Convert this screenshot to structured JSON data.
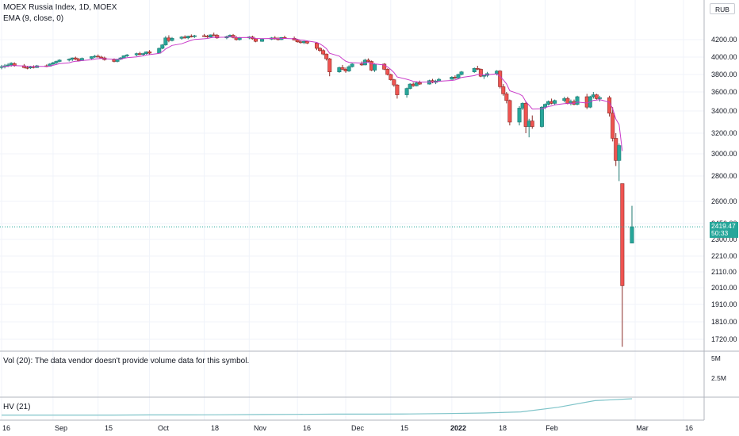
{
  "header": {
    "title": "MOEX Russia Index, 1D, MOEX",
    "indicator": "EMA (9, close, 0)",
    "currency": "RUB"
  },
  "volume_pane": {
    "label": "Vol (20): The data vendor doesn't provide volume data for this symbol.",
    "ticks": [
      "5M",
      "2.5M"
    ]
  },
  "hv_pane": {
    "label": "HV (21)"
  },
  "last_price": {
    "value": "2419.47",
    "countdown": "50:33"
  },
  "colors": {
    "up": "#26a69a",
    "down": "#ef5350",
    "ema": "#c93bc9",
    "hv": "#7fc4c9",
    "grid": "#f0f3fa",
    "border": "#b2b5be"
  },
  "chart_data": {
    "type": "candlestick",
    "title": "MOEX Russia Index, 1D, MOEX",
    "y_ticks": [
      4200,
      4000,
      3800,
      3600,
      3400,
      3200,
      3000,
      2800,
      2600,
      2450,
      2300,
      2210,
      2110,
      2010,
      1910,
      1810,
      1720
    ],
    "y_tick_labels": [
      "4200.00",
      "4000.00",
      "3800.00",
      "3600.00",
      "3400.00",
      "3200.00",
      "3000.00",
      "2800.00",
      "2600.00",
      "2450.00",
      "2300.00",
      "2210.00",
      "2110.00",
      "2010.00",
      "1910.00",
      "1810.00",
      "1720.00"
    ],
    "x_tick_labels": [
      "16",
      "Sep",
      "15",
      "Oct",
      "18",
      "Nov",
      "16",
      "Dec",
      "15",
      "2022",
      "18",
      "Feb",
      "Mar",
      "16"
    ],
    "x_tick_dates": [
      "2021-08-16",
      "2021-09-01",
      "2021-09-15",
      "2021-10-01",
      "2021-10-18",
      "2021-11-01",
      "2021-11-16",
      "2021-12-01",
      "2021-12-15",
      "2022-01-03",
      "2022-01-18",
      "2022-02-01",
      "2022-03-01",
      "2022-03-16"
    ],
    "candles": [
      {
        "d": "2021-08-16",
        "o": 3880,
        "h": 3910,
        "l": 3860,
        "c": 3890
      },
      {
        "d": "2021-08-17",
        "o": 3890,
        "h": 3920,
        "l": 3870,
        "c": 3900
      },
      {
        "d": "2021-08-18",
        "o": 3900,
        "h": 3930,
        "l": 3885,
        "c": 3910
      },
      {
        "d": "2021-08-19",
        "o": 3910,
        "h": 3940,
        "l": 3890,
        "c": 3930
      },
      {
        "d": "2021-08-20",
        "o": 3925,
        "h": 3940,
        "l": 3890,
        "c": 3905
      },
      {
        "d": "2021-08-23",
        "o": 3900,
        "h": 3920,
        "l": 3870,
        "c": 3880
      },
      {
        "d": "2021-08-24",
        "o": 3880,
        "h": 3900,
        "l": 3860,
        "c": 3875
      },
      {
        "d": "2021-08-25",
        "o": 3875,
        "h": 3900,
        "l": 3865,
        "c": 3890
      },
      {
        "d": "2021-08-26",
        "o": 3890,
        "h": 3905,
        "l": 3870,
        "c": 3880
      },
      {
        "d": "2021-08-27",
        "o": 3880,
        "h": 3910,
        "l": 3875,
        "c": 3900
      },
      {
        "d": "2021-08-30",
        "o": 3900,
        "h": 3915,
        "l": 3885,
        "c": 3895
      },
      {
        "d": "2021-08-31",
        "o": 3895,
        "h": 3930,
        "l": 3890,
        "c": 3920
      },
      {
        "d": "2021-09-01",
        "o": 3920,
        "h": 3945,
        "l": 3905,
        "c": 3935
      },
      {
        "d": "2021-09-02",
        "o": 3935,
        "h": 3960,
        "l": 3920,
        "c": 3950
      },
      {
        "d": "2021-09-03",
        "o": 3950,
        "h": 3975,
        "l": 3940,
        "c": 3965
      },
      {
        "d": "2021-09-06",
        "o": 3965,
        "h": 3985,
        "l": 3950,
        "c": 3975
      },
      {
        "d": "2021-09-07",
        "o": 3975,
        "h": 3995,
        "l": 3955,
        "c": 3990
      },
      {
        "d": "2021-09-08",
        "o": 3990,
        "h": 4005,
        "l": 3965,
        "c": 3975
      },
      {
        "d": "2021-09-09",
        "o": 3975,
        "h": 3990,
        "l": 3950,
        "c": 3960
      },
      {
        "d": "2021-09-10",
        "o": 3960,
        "h": 3995,
        "l": 3955,
        "c": 3985
      },
      {
        "d": "2021-09-13",
        "o": 3985,
        "h": 4010,
        "l": 3975,
        "c": 4005
      },
      {
        "d": "2021-09-14",
        "o": 4005,
        "h": 4025,
        "l": 3990,
        "c": 4010
      },
      {
        "d": "2021-09-15",
        "o": 4010,
        "h": 4030,
        "l": 3995,
        "c": 4000
      },
      {
        "d": "2021-09-16",
        "o": 4000,
        "h": 4015,
        "l": 3980,
        "c": 3990
      },
      {
        "d": "2021-09-17",
        "o": 3990,
        "h": 4005,
        "l": 3960,
        "c": 3970
      },
      {
        "d": "2021-09-20",
        "o": 3970,
        "h": 3985,
        "l": 3940,
        "c": 3950
      },
      {
        "d": "2021-09-21",
        "o": 3950,
        "h": 3980,
        "l": 3940,
        "c": 3975
      },
      {
        "d": "2021-09-22",
        "o": 3975,
        "h": 4000,
        "l": 3965,
        "c": 3990
      },
      {
        "d": "2021-09-23",
        "o": 3990,
        "h": 4020,
        "l": 3985,
        "c": 4015
      },
      {
        "d": "2021-09-24",
        "o": 4015,
        "h": 4035,
        "l": 4000,
        "c": 4025
      },
      {
        "d": "2021-09-27",
        "o": 4025,
        "h": 4050,
        "l": 4010,
        "c": 4040
      },
      {
        "d": "2021-09-28",
        "o": 4040,
        "h": 4060,
        "l": 4020,
        "c": 4030
      },
      {
        "d": "2021-09-29",
        "o": 4030,
        "h": 4050,
        "l": 4015,
        "c": 4040
      },
      {
        "d": "2021-09-30",
        "o": 4040,
        "h": 4065,
        "l": 4030,
        "c": 4060
      },
      {
        "d": "2021-10-01",
        "o": 4060,
        "h": 4080,
        "l": 4030,
        "c": 4045
      },
      {
        "d": "2021-10-04",
        "o": 4045,
        "h": 4110,
        "l": 4040,
        "c": 4100
      },
      {
        "d": "2021-10-05",
        "o": 4100,
        "h": 4150,
        "l": 4090,
        "c": 4140
      },
      {
        "d": "2021-10-06",
        "o": 4140,
        "h": 4240,
        "l": 4130,
        "c": 4220
      },
      {
        "d": "2021-10-07",
        "o": 4220,
        "h": 4250,
        "l": 4170,
        "c": 4190
      },
      {
        "d": "2021-10-08",
        "o": 4190,
        "h": 4230,
        "l": 4180,
        "c": 4215
      },
      {
        "d": "2021-10-11",
        "o": 4215,
        "h": 4240,
        "l": 4200,
        "c": 4230
      },
      {
        "d": "2021-10-12",
        "o": 4230,
        "h": 4250,
        "l": 4210,
        "c": 4220
      },
      {
        "d": "2021-10-13",
        "o": 4220,
        "h": 4245,
        "l": 4205,
        "c": 4240
      },
      {
        "d": "2021-10-14",
        "o": 4240,
        "h": 4260,
        "l": 4225,
        "c": 4235
      },
      {
        "d": "2021-10-15",
        "o": 4235,
        "h": 4255,
        "l": 4220,
        "c": 4245
      },
      {
        "d": "2021-10-18",
        "o": 4245,
        "h": 4265,
        "l": 4230,
        "c": 4240
      },
      {
        "d": "2021-10-19",
        "o": 4240,
        "h": 4255,
        "l": 4220,
        "c": 4230
      },
      {
        "d": "2021-10-20",
        "o": 4230,
        "h": 4260,
        "l": 4225,
        "c": 4255
      },
      {
        "d": "2021-10-21",
        "o": 4255,
        "h": 4280,
        "l": 4240,
        "c": 4250
      },
      {
        "d": "2021-10-22",
        "o": 4250,
        "h": 4265,
        "l": 4210,
        "c": 4220
      },
      {
        "d": "2021-10-25",
        "o": 4220,
        "h": 4245,
        "l": 4205,
        "c": 4235
      },
      {
        "d": "2021-10-26",
        "o": 4235,
        "h": 4260,
        "l": 4225,
        "c": 4250
      },
      {
        "d": "2021-10-27",
        "o": 4250,
        "h": 4265,
        "l": 4215,
        "c": 4225
      },
      {
        "d": "2021-10-28",
        "o": 4225,
        "h": 4240,
        "l": 4190,
        "c": 4200
      },
      {
        "d": "2021-10-29",
        "o": 4200,
        "h": 4230,
        "l": 4190,
        "c": 4220
      },
      {
        "d": "2021-11-01",
        "o": 4220,
        "h": 4240,
        "l": 4205,
        "c": 4230
      },
      {
        "d": "2021-11-02",
        "o": 4230,
        "h": 4245,
        "l": 4200,
        "c": 4210
      },
      {
        "d": "2021-11-03",
        "o": 4210,
        "h": 4220,
        "l": 4170,
        "c": 4180
      },
      {
        "d": "2021-11-05",
        "o": 4180,
        "h": 4215,
        "l": 4175,
        "c": 4205
      },
      {
        "d": "2021-11-08",
        "o": 4205,
        "h": 4230,
        "l": 4195,
        "c": 4220
      },
      {
        "d": "2021-11-09",
        "o": 4220,
        "h": 4240,
        "l": 4200,
        "c": 4210
      },
      {
        "d": "2021-11-10",
        "o": 4210,
        "h": 4230,
        "l": 4190,
        "c": 4200
      },
      {
        "d": "2021-11-11",
        "o": 4200,
        "h": 4230,
        "l": 4195,
        "c": 4225
      },
      {
        "d": "2021-11-12",
        "o": 4225,
        "h": 4245,
        "l": 4210,
        "c": 4215
      },
      {
        "d": "2021-11-15",
        "o": 4215,
        "h": 4235,
        "l": 4190,
        "c": 4195
      },
      {
        "d": "2021-11-16",
        "o": 4195,
        "h": 4210,
        "l": 4165,
        "c": 4175
      },
      {
        "d": "2021-11-17",
        "o": 4175,
        "h": 4190,
        "l": 4155,
        "c": 4165
      },
      {
        "d": "2021-11-18",
        "o": 4165,
        "h": 4185,
        "l": 4150,
        "c": 4180
      },
      {
        "d": "2021-11-19",
        "o": 4180,
        "h": 4190,
        "l": 4150,
        "c": 4160
      },
      {
        "d": "2021-11-22",
        "o": 4160,
        "h": 4170,
        "l": 4080,
        "c": 4100
      },
      {
        "d": "2021-11-23",
        "o": 4100,
        "h": 4115,
        "l": 4060,
        "c": 4075
      },
      {
        "d": "2021-11-24",
        "o": 4075,
        "h": 4090,
        "l": 4020,
        "c": 4035
      },
      {
        "d": "2021-11-25",
        "o": 4035,
        "h": 4040,
        "l": 3960,
        "c": 3980
      },
      {
        "d": "2021-11-26",
        "o": 3980,
        "h": 3990,
        "l": 3780,
        "c": 3830
      },
      {
        "d": "2021-11-29",
        "o": 3830,
        "h": 3890,
        "l": 3820,
        "c": 3880
      },
      {
        "d": "2021-11-30",
        "o": 3880,
        "h": 3910,
        "l": 3850,
        "c": 3860
      },
      {
        "d": "2021-12-01",
        "o": 3860,
        "h": 3880,
        "l": 3820,
        "c": 3840
      },
      {
        "d": "2021-12-02",
        "o": 3840,
        "h": 3905,
        "l": 3830,
        "c": 3890
      },
      {
        "d": "2021-12-03",
        "o": 3890,
        "h": 3930,
        "l": 3880,
        "c": 3920
      },
      {
        "d": "2021-12-06",
        "o": 3920,
        "h": 3950,
        "l": 3900,
        "c": 3910
      },
      {
        "d": "2021-12-07",
        "o": 3910,
        "h": 3980,
        "l": 3905,
        "c": 3965
      },
      {
        "d": "2021-12-08",
        "o": 3965,
        "h": 3985,
        "l": 3940,
        "c": 3950
      },
      {
        "d": "2021-12-09",
        "o": 3950,
        "h": 3960,
        "l": 3840,
        "c": 3850
      },
      {
        "d": "2021-12-10",
        "o": 3850,
        "h": 3930,
        "l": 3830,
        "c": 3920
      },
      {
        "d": "2021-12-13",
        "o": 3920,
        "h": 3930,
        "l": 3850,
        "c": 3860
      },
      {
        "d": "2021-12-14",
        "o": 3860,
        "h": 3870,
        "l": 3790,
        "c": 3800
      },
      {
        "d": "2021-12-15",
        "o": 3800,
        "h": 3810,
        "l": 3730,
        "c": 3740
      },
      {
        "d": "2021-12-16",
        "o": 3740,
        "h": 3750,
        "l": 3660,
        "c": 3680
      },
      {
        "d": "2021-12-17",
        "o": 3680,
        "h": 3690,
        "l": 3530,
        "c": 3570
      },
      {
        "d": "2021-12-20",
        "o": 3570,
        "h": 3650,
        "l": 3540,
        "c": 3640
      },
      {
        "d": "2021-12-21",
        "o": 3640,
        "h": 3700,
        "l": 3630,
        "c": 3690
      },
      {
        "d": "2021-12-22",
        "o": 3690,
        "h": 3710,
        "l": 3660,
        "c": 3670
      },
      {
        "d": "2021-12-23",
        "o": 3670,
        "h": 3720,
        "l": 3665,
        "c": 3705
      },
      {
        "d": "2021-12-24",
        "o": 3705,
        "h": 3730,
        "l": 3680,
        "c": 3690
      },
      {
        "d": "2021-12-27",
        "o": 3690,
        "h": 3740,
        "l": 3685,
        "c": 3730
      },
      {
        "d": "2021-12-28",
        "o": 3730,
        "h": 3750,
        "l": 3700,
        "c": 3710
      },
      {
        "d": "2021-12-29",
        "o": 3710,
        "h": 3740,
        "l": 3690,
        "c": 3725
      },
      {
        "d": "2021-12-30",
        "o": 3725,
        "h": 3760,
        "l": 3715,
        "c": 3745
      },
      {
        "d": "2022-01-03",
        "o": 3745,
        "h": 3780,
        "l": 3740,
        "c": 3770
      },
      {
        "d": "2022-01-04",
        "o": 3770,
        "h": 3790,
        "l": 3750,
        "c": 3760
      },
      {
        "d": "2022-01-05",
        "o": 3760,
        "h": 3810,
        "l": 3755,
        "c": 3800
      },
      {
        "d": "2022-01-06",
        "o": 3800,
        "h": 3840,
        "l": 3790,
        "c": 3830
      },
      {
        "d": "2022-01-10",
        "o": 3830,
        "h": 3880,
        "l": 3820,
        "c": 3870
      },
      {
        "d": "2022-01-11",
        "o": 3870,
        "h": 3900,
        "l": 3850,
        "c": 3860
      },
      {
        "d": "2022-01-12",
        "o": 3860,
        "h": 3870,
        "l": 3770,
        "c": 3780
      },
      {
        "d": "2022-01-13",
        "o": 3780,
        "h": 3800,
        "l": 3750,
        "c": 3790
      },
      {
        "d": "2022-01-14",
        "o": 3790,
        "h": 3830,
        "l": 3770,
        "c": 3810
      },
      {
        "d": "2022-01-17",
        "o": 3810,
        "h": 3850,
        "l": 3790,
        "c": 3840
      },
      {
        "d": "2022-01-18",
        "o": 3840,
        "h": 3850,
        "l": 3640,
        "c": 3660
      },
      {
        "d": "2022-01-19",
        "o": 3660,
        "h": 3690,
        "l": 3560,
        "c": 3580
      },
      {
        "d": "2022-01-20",
        "o": 3580,
        "h": 3600,
        "l": 3480,
        "c": 3510
      },
      {
        "d": "2022-01-21",
        "o": 3510,
        "h": 3520,
        "l": 3270,
        "c": 3300
      },
      {
        "d": "2022-01-24",
        "o": 3300,
        "h": 3450,
        "l": 3270,
        "c": 3430
      },
      {
        "d": "2022-01-25",
        "o": 3430,
        "h": 3490,
        "l": 3410,
        "c": 3480
      },
      {
        "d": "2022-01-26",
        "o": 3480,
        "h": 3500,
        "l": 3200,
        "c": 3260
      },
      {
        "d": "2022-01-27",
        "o": 3260,
        "h": 3330,
        "l": 3160,
        "c": 3310
      },
      {
        "d": "2022-01-28",
        "o": 3310,
        "h": 3360,
        "l": 3240,
        "c": 3260
      },
      {
        "d": "2022-01-31",
        "o": 3260,
        "h": 3450,
        "l": 3250,
        "c": 3440
      },
      {
        "d": "2022-02-01",
        "o": 3440,
        "h": 3480,
        "l": 3420,
        "c": 3470
      },
      {
        "d": "2022-02-02",
        "o": 3470,
        "h": 3510,
        "l": 3460,
        "c": 3500
      },
      {
        "d": "2022-02-03",
        "o": 3500,
        "h": 3530,
        "l": 3470,
        "c": 3480
      },
      {
        "d": "2022-02-04",
        "o": 3480,
        "h": 3520,
        "l": 3460,
        "c": 3510
      },
      {
        "d": "2022-02-07",
        "o": 3510,
        "h": 3550,
        "l": 3490,
        "c": 3530
      },
      {
        "d": "2022-02-08",
        "o": 3530,
        "h": 3550,
        "l": 3470,
        "c": 3480
      },
      {
        "d": "2022-02-09",
        "o": 3480,
        "h": 3520,
        "l": 3460,
        "c": 3500
      },
      {
        "d": "2022-02-10",
        "o": 3500,
        "h": 3520,
        "l": 3460,
        "c": 3470
      },
      {
        "d": "2022-02-11",
        "o": 3470,
        "h": 3560,
        "l": 3460,
        "c": 3550
      },
      {
        "d": "2022-02-14",
        "o": 3550,
        "h": 3580,
        "l": 3420,
        "c": 3440
      },
      {
        "d": "2022-02-15",
        "o": 3440,
        "h": 3560,
        "l": 3430,
        "c": 3550
      },
      {
        "d": "2022-02-16",
        "o": 3550,
        "h": 3600,
        "l": 3530,
        "c": 3570
      },
      {
        "d": "2022-02-17",
        "o": 3570,
        "h": 3580,
        "l": 3520,
        "c": 3530
      },
      {
        "d": "2022-02-18",
        "o": 3530,
        "h": 3560,
        "l": 3500,
        "c": 3540
      },
      {
        "d": "2022-02-21",
        "o": 3540,
        "h": 3560,
        "l": 3350,
        "c": 3380
      },
      {
        "d": "2022-02-22",
        "o": 3380,
        "h": 3440,
        "l": 3120,
        "c": 3150
      },
      {
        "d": "2022-02-23",
        "o": 3150,
        "h": 3200,
        "l": 2890,
        "c": 2940
      },
      {
        "d": "2022-02-24",
        "o": 2940,
        "h": 3100,
        "l": 2760,
        "c": 3080
      },
      {
        "d": "2022-02-25",
        "o": 2740,
        "h": 2740,
        "l": 1681,
        "c": 2023
      },
      {
        "d": "2022-02-28",
        "o": 2280,
        "h": 2570,
        "l": 2280,
        "c": 2419.47
      }
    ],
    "ema": {
      "name": "EMA (9, close, 0)"
    },
    "hv": {
      "name": "HV (21)",
      "values": [
        0.14,
        0.14,
        0.14,
        0.14,
        0.15,
        0.15,
        0.16,
        0.17,
        0.18,
        0.19,
        0.19,
        0.2,
        0.22,
        0.25,
        0.31,
        0.55,
        0.9,
        1.0
      ]
    }
  }
}
